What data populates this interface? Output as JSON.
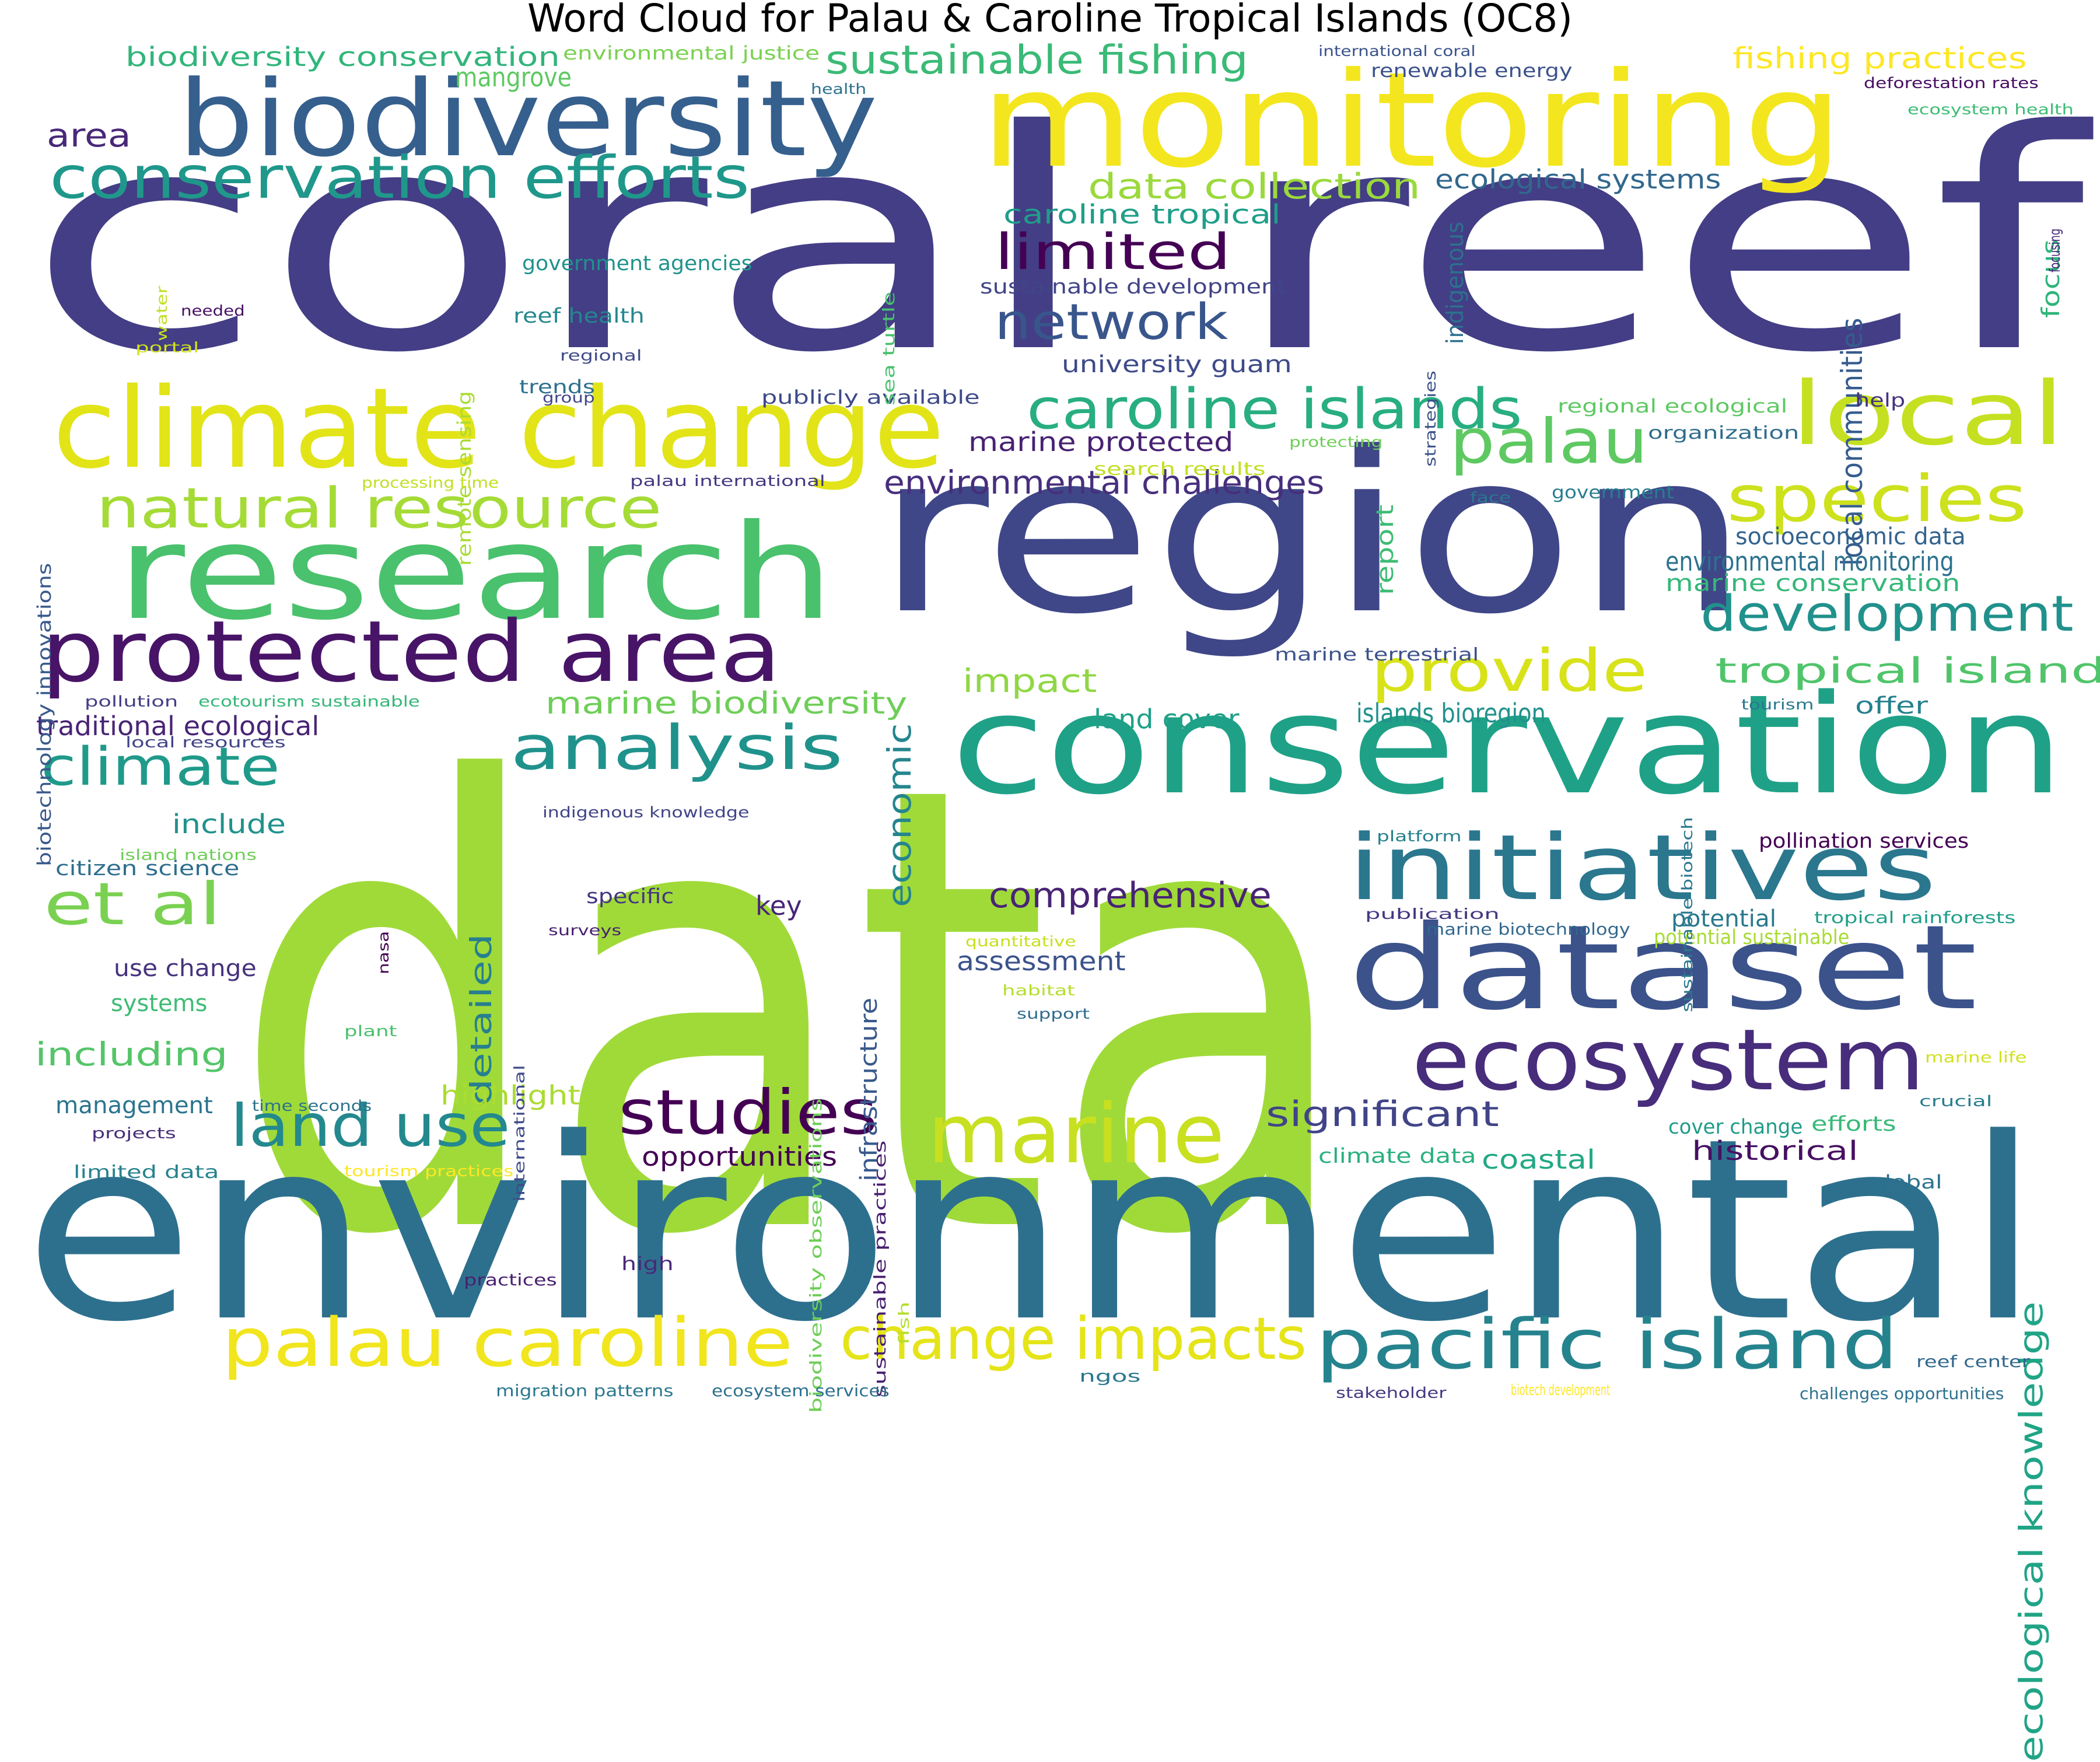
{
  "title": "Word Cloud for Palau & Caroline Tropical Islands (OC8)",
  "palette": [
    "#440154",
    "#482878",
    "#3e4989",
    "#31688e",
    "#26828e",
    "#1f9e89",
    "#35b779",
    "#6ece58",
    "#b5de2b",
    "#fde725"
  ],
  "words": [
    {
      "text": "data",
      "color": "#a0da39"
    },
    {
      "text": "coral reef",
      "color": "#433e85"
    },
    {
      "text": "environmental",
      "color": "#2d708e"
    },
    {
      "text": "region",
      "color": "#3f4788"
    },
    {
      "text": "conservation",
      "color": "#1fa187"
    },
    {
      "text": "monitoring",
      "color": "#f4e61e"
    },
    {
      "text": "research",
      "color": "#4ac16d"
    },
    {
      "text": "climate change",
      "color": "#e2e418"
    },
    {
      "text": "biodiversity",
      "color": "#355f8d"
    },
    {
      "text": "dataset",
      "color": "#3b528b"
    },
    {
      "text": "protected area",
      "color": "#481467"
    },
    {
      "text": "initiatives",
      "color": "#2a778e"
    },
    {
      "text": "ecosystem",
      "color": "#472d7b"
    },
    {
      "text": "local",
      "color": "#c5e021"
    },
    {
      "text": "marine",
      "color": "#c8e020"
    },
    {
      "text": "pacific island",
      "color": "#25838e"
    },
    {
      "text": "palau caroline",
      "color": "#f1e51d"
    },
    {
      "text": "conservation efforts",
      "color": "#1f988b"
    },
    {
      "text": "change impacts",
      "color": "#e5e419"
    },
    {
      "text": "studies",
      "color": "#440154"
    },
    {
      "text": "land use",
      "color": "#23898e"
    },
    {
      "text": "analysis",
      "color": "#20928c"
    },
    {
      "text": "natural resource",
      "color": "#a5db36"
    },
    {
      "text": "caroline islands",
      "color": "#28ae80"
    },
    {
      "text": "palau",
      "color": "#5ec962"
    },
    {
      "text": "species",
      "color": "#cde11d"
    },
    {
      "text": "development",
      "color": "#21918c"
    },
    {
      "text": "climate",
      "color": "#1f9a8a"
    },
    {
      "text": "provide",
      "color": "#d8e219"
    },
    {
      "text": "et al",
      "color": "#7ad151"
    },
    {
      "text": "network",
      "color": "#39568c"
    },
    {
      "text": "limited",
      "color": "#440154"
    },
    {
      "text": "sustainable fishing",
      "color": "#3aba76"
    },
    {
      "text": "tropical island",
      "color": "#50c46a"
    },
    {
      "text": "data collection",
      "color": "#9bd93c"
    },
    {
      "text": "comprehensive",
      "color": "#482475"
    },
    {
      "text": "significant",
      "color": "#414487"
    },
    {
      "text": "environmental challenges",
      "color": "#472f7d"
    },
    {
      "text": "marine biodiversity",
      "color": "#6ece58"
    },
    {
      "text": "caroline tropical",
      "color": "#1f9e89"
    },
    {
      "text": "marine protected",
      "color": "#482173"
    },
    {
      "text": "fishing practices",
      "color": "#fde725"
    },
    {
      "text": "ecological knowledge",
      "color": "#20a486"
    },
    {
      "text": "local communities",
      "color": "#365c8d"
    },
    {
      "text": "economic",
      "color": "#25858e"
    },
    {
      "text": "detailed",
      "color": "#277f8e"
    },
    {
      "text": "impact",
      "color": "#8fd744"
    },
    {
      "text": "including",
      "color": "#54c568"
    },
    {
      "text": "highlight",
      "color": "#aadc32"
    },
    {
      "text": "historical",
      "color": "#471063"
    },
    {
      "text": "assessment",
      "color": "#3b528b"
    },
    {
      "text": "opportunities",
      "color": "#440154"
    },
    {
      "text": "ecological systems",
      "color": "#31688e"
    },
    {
      "text": "area",
      "color": "#482878"
    },
    {
      "text": "traditional ecological",
      "color": "#482475"
    },
    {
      "text": "coastal",
      "color": "#22a884"
    },
    {
      "text": "islands bioregion",
      "color": "#21918c"
    },
    {
      "text": "land cover",
      "color": "#1fa088"
    },
    {
      "text": "environmental monitoring",
      "color": "#2c728e"
    },
    {
      "text": "marine conservation",
      "color": "#35b779"
    },
    {
      "text": "socioeconomic data",
      "color": "#33638d"
    },
    {
      "text": "potential",
      "color": "#2a788e"
    },
    {
      "text": "key",
      "color": "#482677"
    },
    {
      "text": "include",
      "color": "#20928c"
    },
    {
      "text": "management",
      "color": "#2b748e"
    },
    {
      "text": "systems",
      "color": "#3dbc74"
    },
    {
      "text": "use change",
      "color": "#46327e"
    },
    {
      "text": "specific",
      "color": "#453781"
    },
    {
      "text": "focus",
      "color": "#2fb47c"
    },
    {
      "text": "indigenous",
      "color": "#2d708e"
    },
    {
      "text": "sustainable development",
      "color": "#414487"
    },
    {
      "text": "university guam",
      "color": "#3e4a89"
    },
    {
      "text": "biodiversity conservation",
      "color": "#31b57b"
    },
    {
      "text": "mangrove",
      "color": "#5ec962"
    },
    {
      "text": "report",
      "color": "#3dbc74"
    },
    {
      "text": "infrastructure",
      "color": "#38598c"
    },
    {
      "text": "renewable energy",
      "color": "#3b528b"
    },
    {
      "text": "citizen science",
      "color": "#2e6e8e"
    },
    {
      "text": "offer",
      "color": "#26818e"
    },
    {
      "text": "potential sustainable",
      "color": "#a8db34"
    },
    {
      "text": "climate data",
      "color": "#2ab07f"
    },
    {
      "text": "cover change",
      "color": "#1e9c89"
    },
    {
      "text": "efforts",
      "color": "#38b977"
    },
    {
      "text": "regional ecological",
      "color": "#5ec962"
    },
    {
      "text": "government agencies",
      "color": "#20928c"
    },
    {
      "text": "reef health",
      "color": "#24878e"
    },
    {
      "text": "publicly available",
      "color": "#3e4a89"
    },
    {
      "text": "environmental justice",
      "color": "#7ad151"
    },
    {
      "text": "international coral",
      "color": "#3b528b"
    },
    {
      "text": "deforestation rates",
      "color": "#471063"
    },
    {
      "text": "ecosystem health",
      "color": "#3dbc74"
    },
    {
      "text": "health",
      "color": "#2c728e"
    },
    {
      "text": "pollination services",
      "color": "#440154"
    },
    {
      "text": "marine terrestrial",
      "color": "#3b528b"
    },
    {
      "text": "organization",
      "color": "#2f6c8e"
    },
    {
      "text": "help",
      "color": "#46327e"
    },
    {
      "text": "government",
      "color": "#287d8e"
    },
    {
      "text": "search results",
      "color": "#c2df23"
    },
    {
      "text": "protecting",
      "color": "#6ece58"
    },
    {
      "text": "face",
      "color": "#2a788e"
    },
    {
      "text": "biotechnology innovations",
      "color": "#38598c"
    },
    {
      "text": "water",
      "color": "#c2df23"
    },
    {
      "text": "needed",
      "color": "#471063"
    },
    {
      "text": "portal",
      "color": "#d2e21b"
    },
    {
      "text": "sea turtle",
      "color": "#4ac16d"
    },
    {
      "text": "remote sensing",
      "color": "#aadc32"
    },
    {
      "text": "regional",
      "color": "#3e4a89"
    },
    {
      "text": "trends",
      "color": "#2d708e"
    },
    {
      "text": "group",
      "color": "#404688"
    },
    {
      "text": "strategies",
      "color": "#3b528b"
    },
    {
      "text": "processing time",
      "color": "#c2df23"
    },
    {
      "text": "palau international",
      "color": "#443a83"
    },
    {
      "text": "pollution",
      "color": "#433e85"
    },
    {
      "text": "ecotourism sustainable",
      "color": "#35b779"
    },
    {
      "text": "local resources",
      "color": "#414487"
    },
    {
      "text": "indigenous knowledge",
      "color": "#414487"
    },
    {
      "text": "island nations",
      "color": "#6ece58"
    },
    {
      "text": "platform",
      "color": "#26818e"
    },
    {
      "text": "tourism",
      "color": "#2a788e"
    },
    {
      "text": "sustainable biotech",
      "color": "#2a788e"
    },
    {
      "text": "nasa",
      "color": "#440154"
    },
    {
      "text": "surveys",
      "color": "#481f70"
    },
    {
      "text": "biodiversity observations",
      "color": "#6ece58"
    },
    {
      "text": "sustainable practices",
      "color": "#481f70"
    },
    {
      "text": "international",
      "color": "#3e4a89"
    },
    {
      "text": "quantitative",
      "color": "#c8e020"
    },
    {
      "text": "habitat",
      "color": "#b5de2b"
    },
    {
      "text": "support",
      "color": "#2f6c8e"
    },
    {
      "text": "publication",
      "color": "#453781"
    },
    {
      "text": "marine biotechnology",
      "color": "#31688e"
    },
    {
      "text": "tropical rainforests",
      "color": "#1f9e89"
    },
    {
      "text": "plant",
      "color": "#4ac16d"
    },
    {
      "text": "time seconds",
      "color": "#2c728e"
    },
    {
      "text": "projects",
      "color": "#472d7b"
    },
    {
      "text": "limited data",
      "color": "#26828e"
    },
    {
      "text": "tourism practices",
      "color": "#fde725"
    },
    {
      "text": "marine life",
      "color": "#d2e21b"
    },
    {
      "text": "crucial",
      "color": "#287d8e"
    },
    {
      "text": "global",
      "color": "#2c728e"
    },
    {
      "text": "focusing",
      "color": "#482878"
    },
    {
      "text": "high",
      "color": "#482878"
    },
    {
      "text": "practices",
      "color": "#481f70"
    },
    {
      "text": "fish",
      "color": "#b5de2b"
    },
    {
      "text": "migration patterns",
      "color": "#2a788e"
    },
    {
      "text": "ecosystem services",
      "color": "#2d708e"
    },
    {
      "text": "ngos",
      "color": "#2a788e"
    },
    {
      "text": "stakeholder",
      "color": "#443a83"
    },
    {
      "text": "biotech development",
      "color": "#fde725"
    },
    {
      "text": "challenges opportunities",
      "color": "#2c728e"
    },
    {
      "text": "reef center",
      "color": "#31688e"
    }
  ]
}
